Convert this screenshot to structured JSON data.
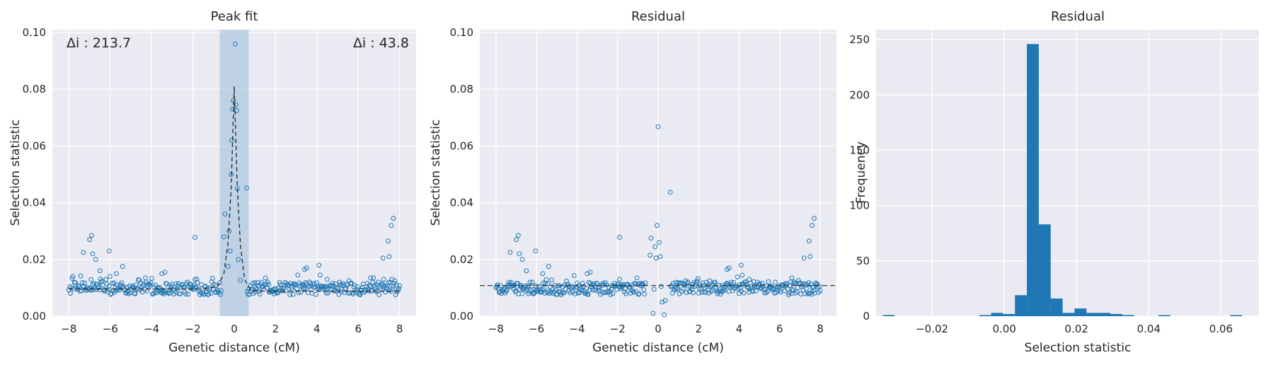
{
  "colors": {
    "background": "#eaeaf2",
    "grid": "#ffffff",
    "accent": "#1f77b4",
    "fit_line": "#262626",
    "shade": "#b0c8e0"
  },
  "chart_data": [
    {
      "type": "scatter",
      "title": "Peak fit",
      "xlabel": "Genetic distance (cM)",
      "ylabel": "Selection statistic",
      "xlim": [
        -8.8,
        8.8
      ],
      "ylim": [
        0.0,
        0.101
      ],
      "xticks": [
        "−8",
        "−6",
        "−4",
        "−2",
        "0",
        "2",
        "4",
        "6",
        "8"
      ],
      "yticks": [
        "0.00",
        "0.02",
        "0.04",
        "0.06",
        "0.08",
        "0.10"
      ],
      "grid": true,
      "shaded_region": [
        -0.7,
        0.7
      ],
      "annotations": [
        {
          "position": "top-left",
          "text": "Δi : 213.7"
        },
        {
          "position": "top-right",
          "text": "Δi : 43.8"
        }
      ],
      "fit_line": {
        "x": [
          -8,
          -1.5,
          -0.8,
          -0.5,
          -0.3,
          -0.15,
          0.0,
          0.15,
          0.3,
          0.5,
          0.8,
          1.5,
          8
        ],
        "y": [
          0.0096,
          0.0096,
          0.0105,
          0.015,
          0.026,
          0.045,
          0.081,
          0.045,
          0.025,
          0.013,
          0.009,
          0.0088,
          0.0088
        ]
      },
      "baseline_level": 0.0098,
      "outliers": {
        "x": [
          -7.3,
          -7.0,
          -6.9,
          -6.85,
          -6.7,
          -6.5,
          -6.05,
          -5.7,
          -5.4,
          -3.5,
          -3.35,
          -1.9,
          -1.9,
          -0.5,
          -0.45,
          -0.3,
          -0.25,
          -0.2,
          -0.15,
          -0.12,
          -0.08,
          -0.05,
          0.05,
          0.08,
          0.12,
          0.15,
          0.2,
          0.3,
          0.6,
          1.0,
          3.4,
          3.5,
          4.1,
          4.15,
          4.5,
          6.6,
          7.2,
          7.45,
          7.5,
          7.6,
          7.7
        ],
        "y": [
          0.0225,
          0.027,
          0.0285,
          0.022,
          0.02,
          0.016,
          0.023,
          0.015,
          0.0175,
          0.015,
          0.0155,
          0.0278,
          0.013,
          0.028,
          0.036,
          0.0175,
          0.03,
          0.023,
          0.05,
          0.062,
          0.073,
          0.076,
          0.096,
          0.0745,
          0.0725,
          0.045,
          0.02,
          0.0127,
          0.0452,
          0.0118,
          0.0165,
          0.017,
          0.018,
          0.0145,
          0.013,
          0.0135,
          0.0205,
          0.0265,
          0.021,
          0.032,
          0.0345
        ]
      }
    },
    {
      "type": "scatter",
      "title": "Residual",
      "xlabel": "Genetic distance (cM)",
      "ylabel": "Selection statistic",
      "xlim": [
        -8.8,
        8.8
      ],
      "ylim": [
        0.0,
        0.101
      ],
      "xticks": [
        "−8",
        "−6",
        "−4",
        "−2",
        "0",
        "2",
        "4",
        "6",
        "8"
      ],
      "yticks": [
        "0.00",
        "0.02",
        "0.04",
        "0.06",
        "0.08",
        "0.10"
      ],
      "grid": true,
      "reference_line": 0.0108,
      "baseline_level": 0.0098,
      "outliers": {
        "x": [
          -7.3,
          -7.0,
          -6.9,
          -6.85,
          -6.7,
          -6.5,
          -6.05,
          -5.7,
          -5.4,
          -3.5,
          -3.35,
          -1.9,
          -1.9,
          -0.4,
          -0.35,
          -0.25,
          -0.15,
          -0.1,
          -0.05,
          0.0,
          0.05,
          0.1,
          0.2,
          0.3,
          0.35,
          0.6,
          1.0,
          3.4,
          3.5,
          4.1,
          4.15,
          4.5,
          6.6,
          7.2,
          7.45,
          7.5,
          7.6,
          7.7,
          -0.2,
          0.15
        ],
        "y": [
          0.0225,
          0.027,
          0.0285,
          0.022,
          0.02,
          0.016,
          0.023,
          0.015,
          0.0175,
          0.015,
          0.0155,
          0.0278,
          0.013,
          0.0215,
          0.0275,
          0.001,
          0.0245,
          0.0205,
          0.032,
          0.0668,
          0.026,
          0.021,
          0.005,
          0.0005,
          0.0055,
          0.0437,
          0.0118,
          0.0165,
          0.017,
          0.018,
          0.0145,
          0.013,
          0.0135,
          0.0205,
          0.0265,
          0.021,
          0.032,
          0.0345,
          0.0095,
          0.0105
        ]
      }
    },
    {
      "type": "bar",
      "title": "Residual",
      "xlabel": "Selection statistic",
      "ylabel": "Frequency",
      "xlim": [
        -0.0355,
        0.0705
      ],
      "ylim": [
        0,
        259
      ],
      "xticks": [
        "−0.02",
        "0.00",
        "0.02",
        "0.04",
        "0.06"
      ],
      "yticks": [
        "0",
        "50",
        "100",
        "150",
        "200",
        "250"
      ],
      "grid": true,
      "bin_width": 0.0033,
      "bin_centers": [
        -0.032,
        -0.0053,
        -0.002,
        0.0013,
        0.0046,
        0.0079,
        0.0112,
        0.0145,
        0.0178,
        0.0211,
        0.0244,
        0.0277,
        0.031,
        0.0343,
        0.0443,
        0.0642
      ],
      "values": [
        1,
        1,
        3,
        2,
        19,
        246,
        83,
        16,
        3,
        7,
        3,
        3,
        2,
        1,
        1,
        1
      ]
    }
  ]
}
